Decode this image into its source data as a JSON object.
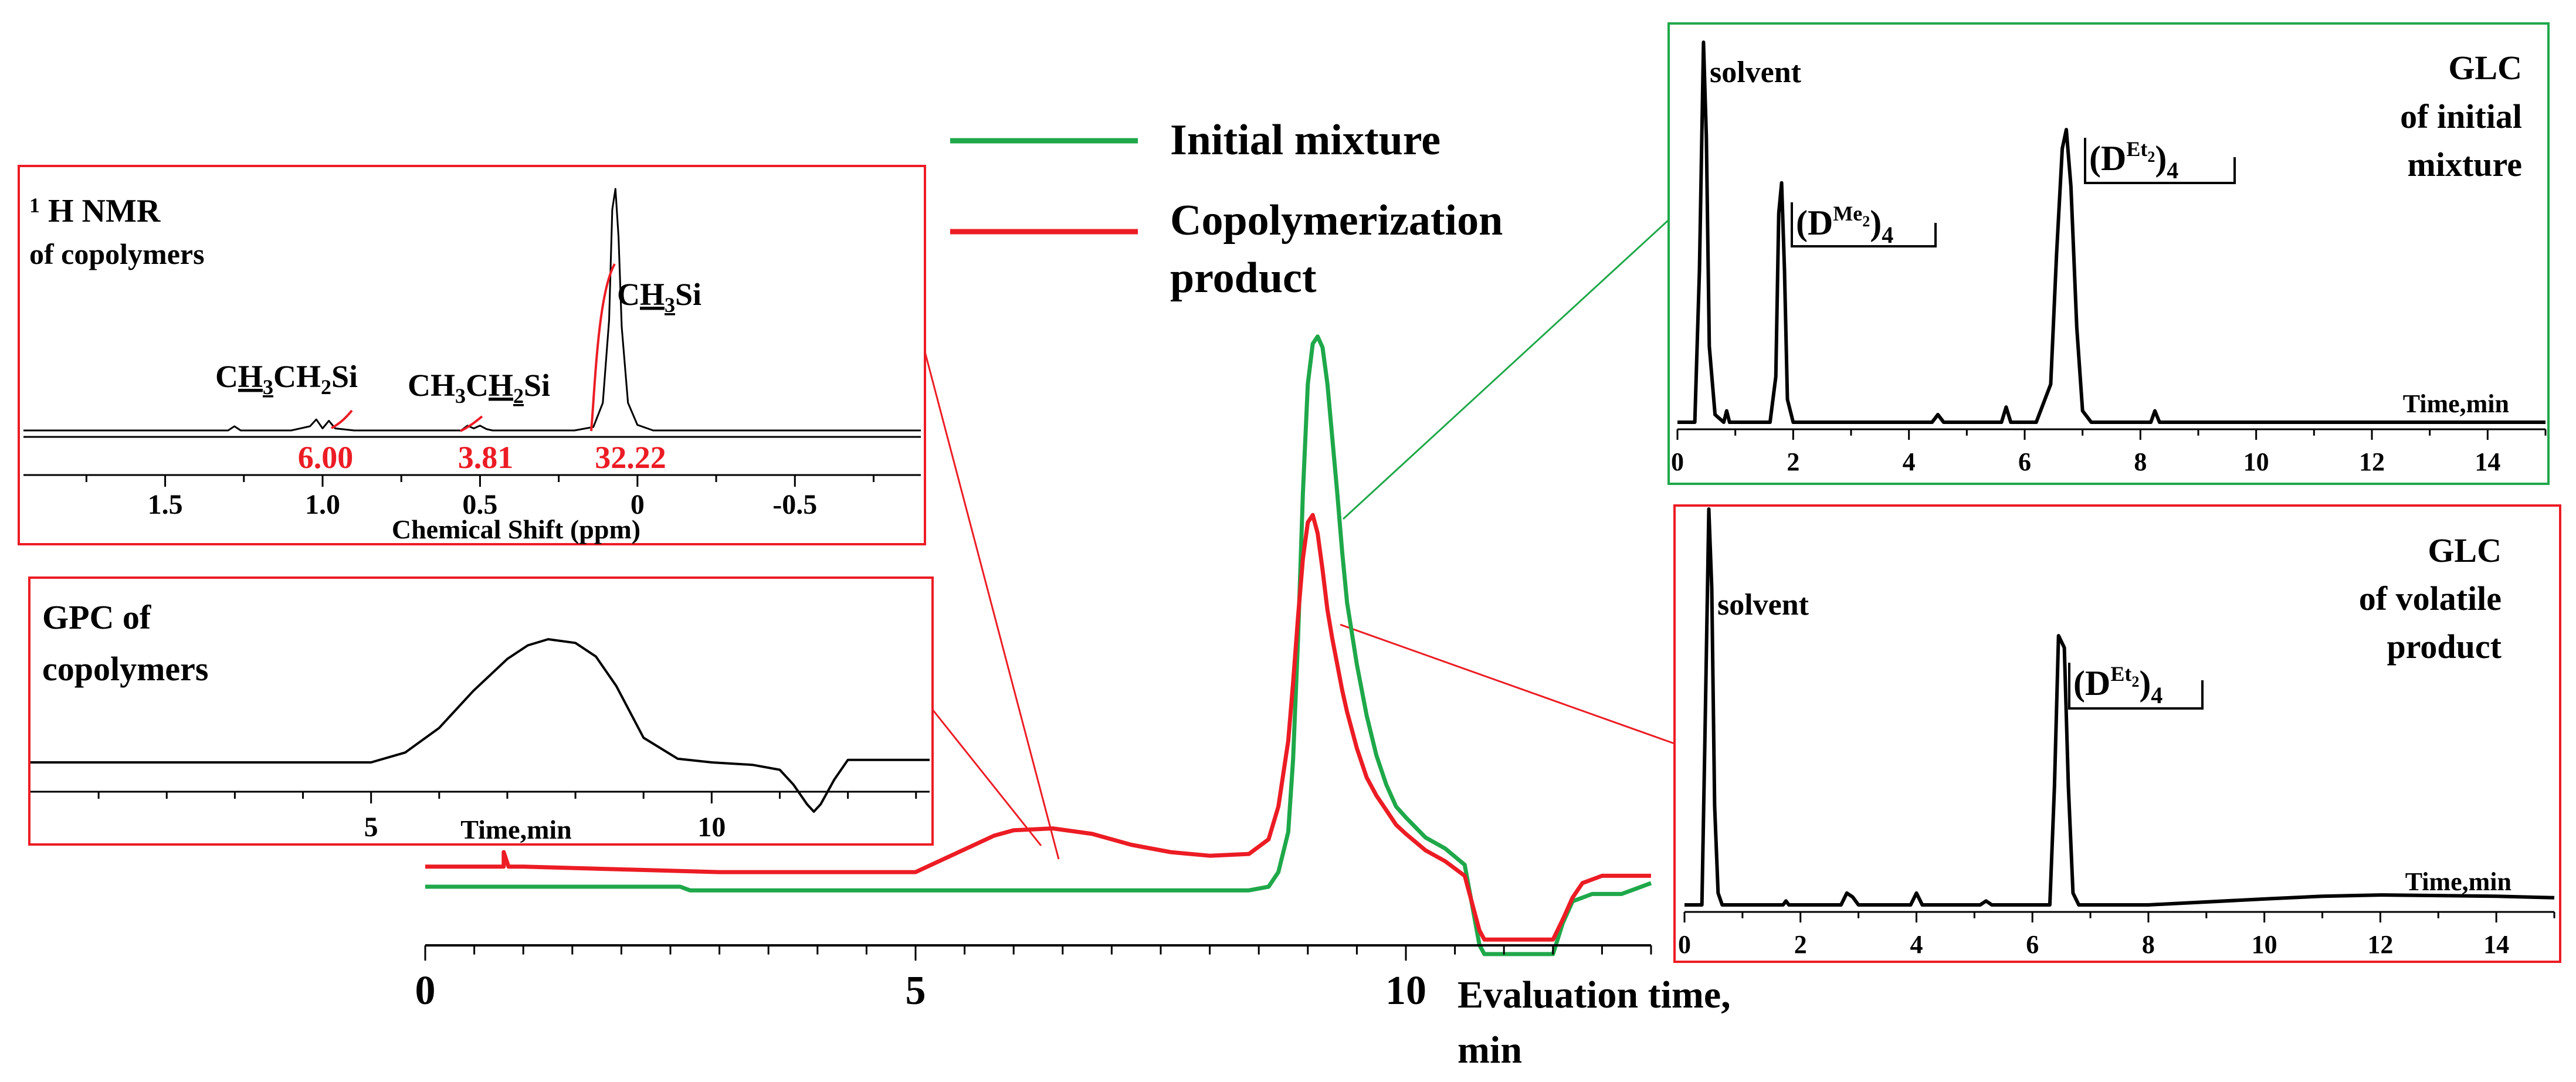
{
  "colors": {
    "green": "#1fa84a",
    "red": "#ec1c24",
    "black": "#000000",
    "integral": "#ec1c24"
  },
  "chart_data": [
    {
      "id": "main",
      "type": "line",
      "title": "",
      "xlabel_line1": "Evaluation time,",
      "xlabel_line2": "min",
      "xlim": [
        0,
        12.5
      ],
      "x_ticks": [
        0,
        5,
        10
      ],
      "x_tick_labels": [
        "0",
        "5",
        "10"
      ],
      "legend": [
        {
          "name": "Initial mixture",
          "color": "#1fa84a"
        },
        {
          "name_line1": "Copolymerization",
          "name_line2": "product",
          "color": "#ec1c24"
        }
      ],
      "series": [
        {
          "name": "Initial mixture",
          "color": "#1fa84a",
          "x": [
            0,
            2.6,
            2.7,
            8.4,
            8.6,
            8.7,
            8.8,
            8.85,
            8.9,
            8.95,
            9.0,
            9.05,
            9.1,
            9.15,
            9.2,
            9.25,
            9.3,
            9.35,
            9.4,
            9.5,
            9.6,
            9.7,
            9.8,
            9.9,
            10.0,
            10.2,
            10.4,
            10.6,
            10.75,
            10.8,
            10.9,
            11.5,
            11.6,
            11.7,
            11.8,
            11.9,
            12.0,
            12.2,
            12.5
          ],
          "y": [
            0,
            0,
            -0.1,
            -0.1,
            0,
            0.4,
            1.5,
            3.5,
            6.8,
            10.8,
            13.8,
            14.9,
            15.1,
            14.8,
            13.8,
            12.3,
            10.8,
            9.2,
            7.8,
            6.1,
            4.7,
            3.6,
            2.8,
            2.2,
            1.9,
            1.35,
            1.05,
            0.6,
            -1.6,
            -1.85,
            -1.85,
            -1.85,
            -1.0,
            -0.4,
            -0.3,
            -0.2,
            -0.2,
            -0.2,
            0.1
          ]
        },
        {
          "name": "Copolymerization product",
          "color": "#ec1c24",
          "x": [
            0,
            0.8,
            0.8,
            0.85,
            1.0,
            3.0,
            5.0,
            5.4,
            5.8,
            6.0,
            6.4,
            6.8,
            7.2,
            7.6,
            8.0,
            8.4,
            8.6,
            8.7,
            8.8,
            8.85,
            8.9,
            8.95,
            9.0,
            9.05,
            9.1,
            9.15,
            9.2,
            9.25,
            9.3,
            9.35,
            9.4,
            9.5,
            9.6,
            9.7,
            9.8,
            9.9,
            10.0,
            10.2,
            10.4,
            10.6,
            10.75,
            10.8,
            11.5,
            11.6,
            11.7,
            11.8,
            11.9,
            12.0,
            12.2,
            12.5
          ],
          "y": [
            0.55,
            0.55,
            0.95,
            0.55,
            0.55,
            0.4,
            0.4,
            0.9,
            1.4,
            1.55,
            1.6,
            1.45,
            1.15,
            0.95,
            0.85,
            0.9,
            1.3,
            2.2,
            4.0,
            5.6,
            7.4,
            9.0,
            10.0,
            10.2,
            9.7,
            8.7,
            7.6,
            6.8,
            6.1,
            5.4,
            4.8,
            3.8,
            3.0,
            2.5,
            2.1,
            1.7,
            1.45,
            1.0,
            0.7,
            0.3,
            -1.2,
            -1.45,
            -1.45,
            -0.9,
            -0.3,
            0.1,
            0.2,
            0.3,
            0.3,
            0.3
          ]
        }
      ]
    },
    {
      "id": "nmr",
      "type": "line",
      "title_sup": "1",
      "title": " H NMR",
      "subtitle": "of copolymers",
      "xlabel": "Chemical Shift (ppm)",
      "xlim": [
        1.95,
        -0.9
      ],
      "x_ticks": [
        1.5,
        1.0,
        0.5,
        0.0,
        -0.5
      ],
      "x_tick_labels": [
        "1.5",
        "1.0",
        "0.5",
        "0",
        "-0.5"
      ],
      "peaks": [
        {
          "label_parts": [
            "C",
            "H",
            "3",
            "CH",
            "2",
            "Si"
          ],
          "shift": 1.0
        },
        {
          "label_parts": [
            "CH",
            "3",
            "C",
            "H",
            "2",
            "Si"
          ],
          "shift": 0.5
        },
        {
          "label_parts": [
            "C",
            "H",
            "3",
            "Si"
          ],
          "shift": 0.07
        }
      ],
      "integrals": [
        "6.00",
        "3.81",
        "32.22"
      ],
      "x": [
        1.95,
        1.3,
        1.28,
        1.26,
        1.1,
        1.04,
        1.02,
        1.0,
        0.98,
        0.96,
        0.9,
        0.56,
        0.54,
        0.52,
        0.5,
        0.48,
        0.46,
        0.2,
        0.14,
        0.11,
        0.09,
        0.08,
        0.07,
        0.06,
        0.05,
        0.03,
        0.0,
        -0.05,
        -0.9
      ],
      "y": [
        0,
        0,
        0.06,
        0,
        0,
        0.06,
        0.16,
        0.03,
        0.14,
        0.03,
        0,
        0,
        0.07,
        0.03,
        0.07,
        0.02,
        0,
        0,
        0.05,
        0.4,
        1.6,
        3.2,
        3.5,
        2.8,
        1.5,
        0.4,
        0.08,
        0,
        0
      ]
    },
    {
      "id": "gpc",
      "type": "line",
      "title_line1": "GPC of",
      "title_line2": "copolymers",
      "xlabel": "Time,min",
      "xlim": [
        0,
        13.2
      ],
      "x_ticks": [
        5,
        10
      ],
      "x_tick_labels": [
        "5",
        "10"
      ],
      "x": [
        0,
        4.0,
        5.0,
        5.5,
        6.0,
        6.5,
        7.0,
        7.3,
        7.6,
        8.0,
        8.3,
        8.6,
        9.0,
        9.5,
        10.0,
        10.6,
        11.0,
        11.2,
        11.4,
        11.5,
        11.6,
        11.8,
        12.0,
        12.4,
        13.2
      ],
      "y": [
        0,
        0,
        0,
        0.08,
        0.28,
        0.58,
        0.84,
        0.95,
        1.0,
        0.97,
        0.86,
        0.62,
        0.2,
        0.03,
        0,
        -0.02,
        -0.06,
        -0.18,
        -0.34,
        -0.4,
        -0.34,
        -0.14,
        0.02,
        0.02,
        0.02
      ]
    },
    {
      "id": "glc1",
      "type": "line",
      "title_line1": "GLC",
      "title_line2": "of initial",
      "title_line3": "mixture",
      "xlabel": "Time,min",
      "xlim": [
        0,
        15
      ],
      "x_ticks": [
        0,
        2,
        4,
        6,
        8,
        10,
        12,
        14
      ],
      "x_tick_labels": [
        "0",
        "2",
        "4",
        "6",
        "8",
        "10",
        "12",
        "14"
      ],
      "peak_labels": [
        {
          "text": "solvent",
          "time": 0.45
        },
        {
          "base": "(D",
          "sup": "Me",
          "subsup": "2",
          "close": ")",
          "sub": "4",
          "time": 1.8
        },
        {
          "base": "(D",
          "sup": "Et",
          "subsup": "2",
          "close": ")",
          "sub": "4",
          "time": 6.7
        }
      ],
      "x": [
        0,
        0.3,
        0.38,
        0.45,
        0.5,
        0.55,
        0.65,
        0.8,
        0.85,
        0.9,
        1.6,
        1.7,
        1.75,
        1.8,
        1.85,
        1.9,
        2.0,
        3.0,
        4.4,
        4.5,
        4.6,
        5.6,
        5.68,
        5.76,
        6.2,
        6.45,
        6.55,
        6.65,
        6.72,
        6.8,
        6.9,
        7.0,
        7.05,
        7.15,
        8.18,
        8.25,
        8.33,
        10.0,
        12.0,
        15.0
      ],
      "y": [
        0,
        0,
        40,
        100,
        75,
        20,
        2,
        0,
        3,
        0,
        0,
        12,
        55,
        63,
        40,
        6,
        0,
        0,
        0,
        2,
        0,
        0,
        4,
        0,
        0,
        10,
        44,
        72,
        77,
        62,
        25,
        3,
        2,
        0,
        0,
        3,
        0,
        0,
        0,
        0
      ]
    },
    {
      "id": "glc2",
      "type": "line",
      "title_line1": "GLC",
      "title_line2": "of volatile",
      "title_line3": "product",
      "xlabel": "Time,min",
      "xlim": [
        0,
        15
      ],
      "x_ticks": [
        0,
        2,
        4,
        6,
        8,
        10,
        12,
        14
      ],
      "x_tick_labels": [
        "0",
        "2",
        "4",
        "6",
        "8",
        "10",
        "12",
        "14"
      ],
      "peak_labels": [
        {
          "text": "solvent",
          "time": 0.45
        },
        {
          "base": "(D",
          "sup": "Et",
          "subsup": "2",
          "close": ")",
          "sub": "4",
          "time": 6.5
        }
      ],
      "x": [
        0,
        0.3,
        0.35,
        0.42,
        0.47,
        0.52,
        0.58,
        0.65,
        1.7,
        1.75,
        1.8,
        2.7,
        2.8,
        2.9,
        3.0,
        3.9,
        4.0,
        4.1,
        5.1,
        5.2,
        5.3,
        6.3,
        6.38,
        6.45,
        6.55,
        6.62,
        6.7,
        6.8,
        8.0,
        10.0,
        11.0,
        12.0,
        14.0,
        15.0
      ],
      "y": [
        0,
        0,
        40,
        100,
        80,
        25,
        3,
        0,
        0,
        1,
        0,
        0,
        3,
        2,
        0,
        0,
        3,
        0,
        0,
        1,
        0,
        0,
        30,
        68,
        65,
        30,
        3,
        0,
        0,
        1.5,
        2.2,
        2.5,
        2.2,
        1.8
      ]
    }
  ]
}
